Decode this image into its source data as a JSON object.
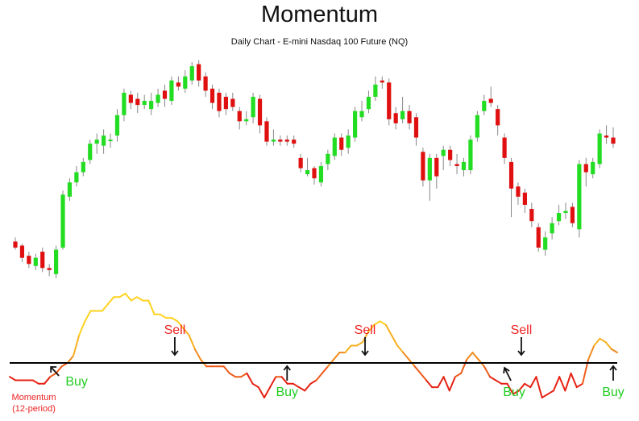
{
  "chart_data": {
    "type": "candlestick",
    "title": "Momentum",
    "subtitle": "Daily Chart - E-mini Nasdaq 100 Future (NQ)",
    "colors": {
      "up": "#22dd22",
      "down": "#e01010",
      "wick": "#888888",
      "zero_line": "#000000",
      "buy_text": "#22cc22",
      "sell_text": "#ee2222",
      "label_text": "#ee2222"
    },
    "price_scale": [
      0,
      100
    ],
    "candles": [
      {
        "o": 15,
        "c": 12,
        "h": 17,
        "l": 11
      },
      {
        "o": 13,
        "c": 7,
        "h": 14,
        "l": 5
      },
      {
        "o": 8,
        "c": 4,
        "h": 10,
        "l": 2
      },
      {
        "o": 3,
        "c": 7,
        "h": 9,
        "l": 1
      },
      {
        "o": 10,
        "c": 2,
        "h": 12,
        "l": 0
      },
      {
        "o": 2,
        "c": 1,
        "h": 4,
        "l": -2
      },
      {
        "o": -1,
        "c": 11,
        "h": 13,
        "l": -3
      },
      {
        "o": 12,
        "c": 38,
        "h": 40,
        "l": 11
      },
      {
        "o": 37,
        "c": 44,
        "h": 46,
        "l": 35
      },
      {
        "o": 44,
        "c": 49,
        "h": 52,
        "l": 42
      },
      {
        "o": 49,
        "c": 54,
        "h": 56,
        "l": 47
      },
      {
        "o": 55,
        "c": 63,
        "h": 65,
        "l": 53
      },
      {
        "o": 63,
        "c": 65,
        "h": 68,
        "l": 58
      },
      {
        "o": 62,
        "c": 67,
        "h": 70,
        "l": 58
      },
      {
        "o": 65,
        "c": 65,
        "h": 68,
        "l": 61
      },
      {
        "o": 67,
        "c": 77,
        "h": 80,
        "l": 64
      },
      {
        "o": 77,
        "c": 88,
        "h": 90,
        "l": 74
      },
      {
        "o": 87,
        "c": 83,
        "h": 89,
        "l": 80
      },
      {
        "o": 85,
        "c": 82,
        "h": 88,
        "l": 78
      },
      {
        "o": 82,
        "c": 84,
        "h": 87,
        "l": 80
      },
      {
        "o": 80,
        "c": 84,
        "h": 88,
        "l": 77
      },
      {
        "o": 83,
        "c": 87,
        "h": 90,
        "l": 81
      },
      {
        "o": 89,
        "c": 85,
        "h": 92,
        "l": 81
      },
      {
        "o": 84,
        "c": 94,
        "h": 96,
        "l": 82
      },
      {
        "o": 93,
        "c": 91,
        "h": 96,
        "l": 89
      },
      {
        "o": 90,
        "c": 96,
        "h": 99,
        "l": 88
      },
      {
        "o": 94,
        "c": 101,
        "h": 103,
        "l": 92
      },
      {
        "o": 102,
        "c": 94,
        "h": 104,
        "l": 91
      },
      {
        "o": 96,
        "c": 89,
        "h": 98,
        "l": 86
      },
      {
        "o": 90,
        "c": 83,
        "h": 92,
        "l": 80
      },
      {
        "o": 88,
        "c": 79,
        "h": 90,
        "l": 76
      },
      {
        "o": 86,
        "c": 80,
        "h": 88,
        "l": 77
      },
      {
        "o": 85,
        "c": 81,
        "h": 88,
        "l": 79
      },
      {
        "o": 79,
        "c": 74,
        "h": 81,
        "l": 70
      },
      {
        "o": 74,
        "c": 75,
        "h": 79,
        "l": 72
      },
      {
        "o": 76,
        "c": 86,
        "h": 88,
        "l": 73
      },
      {
        "o": 85,
        "c": 72,
        "h": 87,
        "l": 68
      },
      {
        "o": 74,
        "c": 64,
        "h": 76,
        "l": 62
      },
      {
        "o": 64,
        "c": 65,
        "h": 70,
        "l": 62
      },
      {
        "o": 65,
        "c": 64,
        "h": 67,
        "l": 62
      },
      {
        "o": 65,
        "c": 64,
        "h": 67,
        "l": 62
      },
      {
        "o": 65,
        "c": 63,
        "h": 67,
        "l": 61
      },
      {
        "o": 56,
        "c": 51,
        "h": 58,
        "l": 49
      },
      {
        "o": 48,
        "c": 50,
        "h": 56,
        "l": 47
      },
      {
        "o": 51,
        "c": 46,
        "h": 52,
        "l": 43
      },
      {
        "o": 44,
        "c": 52,
        "h": 54,
        "l": 42
      },
      {
        "o": 53,
        "c": 58,
        "h": 60,
        "l": 50
      },
      {
        "o": 57,
        "c": 66,
        "h": 68,
        "l": 55
      },
      {
        "o": 66,
        "c": 60,
        "h": 68,
        "l": 57
      },
      {
        "o": 61,
        "c": 67,
        "h": 70,
        "l": 58
      },
      {
        "o": 66,
        "c": 79,
        "h": 81,
        "l": 64
      },
      {
        "o": 76,
        "c": 79,
        "h": 84,
        "l": 74
      },
      {
        "o": 80,
        "c": 86,
        "h": 89,
        "l": 78
      },
      {
        "o": 86,
        "c": 92,
        "h": 96,
        "l": 84
      },
      {
        "o": 94,
        "c": 93,
        "h": 96,
        "l": 90
      },
      {
        "o": 93,
        "c": 75,
        "h": 95,
        "l": 72
      },
      {
        "o": 78,
        "c": 73,
        "h": 81,
        "l": 70
      },
      {
        "o": 75,
        "c": 79,
        "h": 86,
        "l": 73
      },
      {
        "o": 79,
        "c": 73,
        "h": 82,
        "l": 70
      },
      {
        "o": 76,
        "c": 66,
        "h": 78,
        "l": 62
      },
      {
        "o": 59,
        "c": 45,
        "h": 61,
        "l": 42
      },
      {
        "o": 45,
        "c": 56,
        "h": 58,
        "l": 35
      },
      {
        "o": 56,
        "c": 47,
        "h": 58,
        "l": 41
      },
      {
        "o": 57,
        "c": 60,
        "h": 62,
        "l": 50
      },
      {
        "o": 60,
        "c": 55,
        "h": 62,
        "l": 52
      },
      {
        "o": 53,
        "c": 52,
        "h": 58,
        "l": 48
      },
      {
        "o": 50,
        "c": 54,
        "h": 56,
        "l": 47
      },
      {
        "o": 50,
        "c": 65,
        "h": 67,
        "l": 48
      },
      {
        "o": 66,
        "c": 77,
        "h": 79,
        "l": 64
      },
      {
        "o": 79,
        "c": 84,
        "h": 87,
        "l": 77
      },
      {
        "o": 85,
        "c": 83,
        "h": 91,
        "l": 81
      },
      {
        "o": 80,
        "c": 72,
        "h": 82,
        "l": 67
      },
      {
        "o": 66,
        "c": 56,
        "h": 68,
        "l": 53
      },
      {
        "o": 54,
        "c": 41,
        "h": 56,
        "l": 27
      },
      {
        "o": 42,
        "c": 37,
        "h": 44,
        "l": 33
      },
      {
        "o": 39,
        "c": 33,
        "h": 41,
        "l": 29
      },
      {
        "o": 31,
        "c": 25,
        "h": 34,
        "l": 22
      },
      {
        "o": 22,
        "c": 12,
        "h": 24,
        "l": 10
      },
      {
        "o": 11,
        "c": 17,
        "h": 20,
        "l": 8
      },
      {
        "o": 19,
        "c": 24,
        "h": 27,
        "l": 16
      },
      {
        "o": 25,
        "c": 29,
        "h": 33,
        "l": 23
      },
      {
        "o": 29,
        "c": 30,
        "h": 34,
        "l": 26
      },
      {
        "o": 32,
        "c": 24,
        "h": 34,
        "l": 22
      },
      {
        "o": 21,
        "c": 53,
        "h": 55,
        "l": 17
      },
      {
        "o": 53,
        "c": 49,
        "h": 56,
        "l": 42
      },
      {
        "o": 48,
        "c": 54,
        "h": 56,
        "l": 46
      },
      {
        "o": 53,
        "c": 68,
        "h": 70,
        "l": 51
      },
      {
        "o": 67,
        "c": 66,
        "h": 72,
        "l": 63
      },
      {
        "o": 66,
        "c": 63,
        "h": 71,
        "l": 61
      }
    ],
    "momentum": {
      "label_line1": "Momentum",
      "label_line2": "(12-period)",
      "range": [
        -10,
        20
      ],
      "values": [
        -4,
        -5,
        -5,
        -5,
        -5,
        -6,
        -6,
        -4,
        -3,
        -1,
        0,
        2,
        8,
        12,
        15,
        15,
        15,
        17,
        19,
        19,
        20,
        18,
        19,
        18,
        18,
        14,
        14,
        13,
        13,
        12,
        10,
        8,
        4,
        1,
        -1,
        -1,
        -1,
        -1,
        -3,
        -4,
        -4,
        -3,
        -6,
        -7,
        -10,
        -7,
        -4,
        -4,
        -6,
        -6,
        -7,
        -8,
        -6,
        -5,
        -3,
        -1,
        1,
        3,
        3,
        5,
        5,
        6,
        9,
        11,
        12,
        11,
        8,
        5,
        3,
        1,
        -1,
        -3,
        -5,
        -7,
        -7,
        -4,
        -8,
        -4,
        -3,
        1,
        3,
        1,
        -1,
        -4,
        -5,
        -6,
        -6,
        -9,
        -8,
        -6,
        -7,
        -4,
        -10,
        -9,
        -8,
        -4,
        -8,
        -3,
        -7,
        -6,
        1,
        5,
        7,
        6,
        4,
        3
      ]
    },
    "annotations": {
      "buy_label": "Buy",
      "sell_label": "Sell",
      "buy_points": [
        5,
        40,
        72,
        88
      ],
      "sell_points": [
        23,
        51,
        74
      ]
    }
  }
}
